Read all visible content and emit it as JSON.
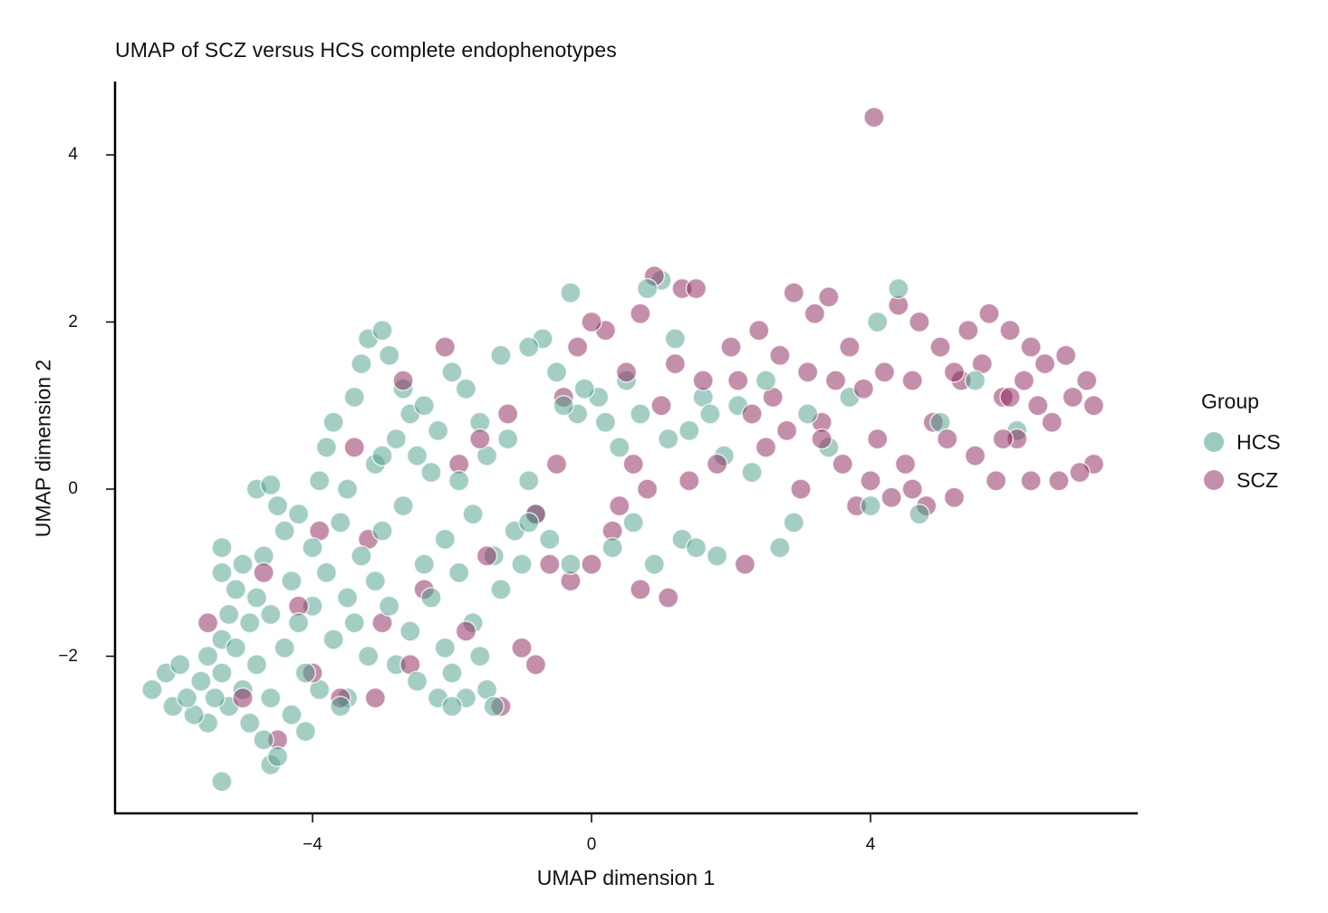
{
  "chart_data": {
    "type": "scatter",
    "title": "UMAP of SCZ versus HCS complete endophenotypes",
    "xlabel": "UMAP dimension 1",
    "ylabel": "UMAP dimension 2",
    "xlim": [
      -6.77,
      7.88
    ],
    "ylim": [
      -3.88,
      4.88
    ],
    "xticks": [
      -4,
      0,
      4
    ],
    "yticks": [
      -2,
      0,
      2,
      4
    ],
    "grid": false,
    "legend": {
      "title": "Group",
      "position": "right",
      "entries": [
        "HCS",
        "SCZ"
      ]
    },
    "series": [
      {
        "name": "HCS",
        "color": "#4a9e8a",
        "alpha": 0.5,
        "points": [
          [
            -6.3,
            -2.4
          ],
          [
            -6.1,
            -2.2
          ],
          [
            -6.0,
            -2.6
          ],
          [
            -5.9,
            -2.1
          ],
          [
            -5.8,
            -2.5
          ],
          [
            -5.7,
            -2.7
          ],
          [
            -5.6,
            -2.3
          ],
          [
            -5.5,
            -2.0
          ],
          [
            -5.5,
            -2.8
          ],
          [
            -5.4,
            -2.5
          ],
          [
            -5.3,
            -1.8
          ],
          [
            -5.3,
            -2.2
          ],
          [
            -5.2,
            -1.5
          ],
          [
            -5.2,
            -2.6
          ],
          [
            -5.1,
            -1.2
          ],
          [
            -5.1,
            -1.9
          ],
          [
            -5.0,
            -2.4
          ],
          [
            -5.0,
            -0.9
          ],
          [
            -5.3,
            -0.7
          ],
          [
            -5.3,
            -1.0
          ],
          [
            -4.9,
            -1.6
          ],
          [
            -4.9,
            -2.8
          ],
          [
            -4.8,
            -2.1
          ],
          [
            -4.8,
            -1.3
          ],
          [
            -4.7,
            -0.8
          ],
          [
            -4.7,
            -3.0
          ],
          [
            -4.6,
            -1.5
          ],
          [
            -4.6,
            -2.5
          ],
          [
            -4.5,
            -3.2
          ],
          [
            -4.5,
            -0.2
          ],
          [
            -4.8,
            0.0
          ],
          [
            -4.4,
            -0.5
          ],
          [
            -4.4,
            -1.9
          ],
          [
            -4.3,
            -2.7
          ],
          [
            -4.3,
            -1.1
          ],
          [
            -4.2,
            -0.3
          ],
          [
            -4.2,
            -1.6
          ],
          [
            -4.1,
            -2.2
          ],
          [
            -4.0,
            -0.7
          ],
          [
            -4.0,
            -1.4
          ],
          [
            -3.9,
            0.1
          ],
          [
            -3.9,
            -2.4
          ],
          [
            -3.8,
            0.5
          ],
          [
            -3.8,
            -1.0
          ],
          [
            -3.7,
            -1.8
          ],
          [
            -3.7,
            0.8
          ],
          [
            -3.6,
            -0.4
          ],
          [
            -3.6,
            -2.6
          ],
          [
            -3.5,
            -1.3
          ],
          [
            -3.5,
            0.0
          ],
          [
            -3.4,
            1.1
          ],
          [
            -3.4,
            -1.6
          ],
          [
            -3.3,
            1.5
          ],
          [
            -3.3,
            -0.8
          ],
          [
            -3.2,
            1.8
          ],
          [
            -3.2,
            -2.0
          ],
          [
            -3.1,
            0.3
          ],
          [
            -3.1,
            -1.1
          ],
          [
            -3.0,
            1.9
          ],
          [
            -3.0,
            -0.5
          ],
          [
            -2.9,
            1.6
          ],
          [
            -2.9,
            -1.4
          ],
          [
            -2.8,
            0.6
          ],
          [
            -2.8,
            -2.1
          ],
          [
            -2.7,
            1.2
          ],
          [
            -2.7,
            -0.2
          ],
          [
            -2.6,
            0.9
          ],
          [
            -2.6,
            -1.7
          ],
          [
            -2.5,
            0.4
          ],
          [
            -2.5,
            -2.3
          ],
          [
            -2.4,
            1.0
          ],
          [
            -2.4,
            -0.9
          ],
          [
            -2.3,
            0.2
          ],
          [
            -2.3,
            -1.3
          ],
          [
            -2.2,
            -2.5
          ],
          [
            -2.2,
            0.7
          ],
          [
            -2.1,
            -0.6
          ],
          [
            -2.1,
            -1.9
          ],
          [
            -2.0,
            1.4
          ],
          [
            -2.0,
            -2.2
          ],
          [
            -1.9,
            0.1
          ],
          [
            -1.9,
            -1.0
          ],
          [
            -1.8,
            -2.5
          ],
          [
            -1.8,
            1.2
          ],
          [
            -1.7,
            -0.3
          ],
          [
            -1.7,
            -1.6
          ],
          [
            -1.6,
            0.8
          ],
          [
            -1.6,
            -2.0
          ],
          [
            -1.5,
            -2.4
          ],
          [
            -1.5,
            0.4
          ],
          [
            -1.4,
            -0.8
          ],
          [
            -1.3,
            1.6
          ],
          [
            -1.3,
            -1.2
          ],
          [
            -1.2,
            0.6
          ],
          [
            -1.1,
            -0.5
          ],
          [
            -1.0,
            -0.9
          ],
          [
            -0.9,
            1.7
          ],
          [
            -0.9,
            0.1
          ],
          [
            -0.8,
            -0.3
          ],
          [
            -0.7,
            1.8
          ],
          [
            -0.6,
            -0.6
          ],
          [
            -0.5,
            1.4
          ],
          [
            -0.4,
            1.0
          ],
          [
            -0.3,
            2.35
          ],
          [
            -0.2,
            0.9
          ],
          [
            -0.1,
            1.2
          ],
          [
            0.1,
            1.1
          ],
          [
            0.2,
            0.8
          ],
          [
            0.3,
            -0.7
          ],
          [
            0.4,
            0.5
          ],
          [
            0.5,
            1.3
          ],
          [
            0.6,
            -0.4
          ],
          [
            0.7,
            0.9
          ],
          [
            0.8,
            2.4
          ],
          [
            0.9,
            -0.9
          ],
          [
            1.0,
            2.5
          ],
          [
            1.1,
            0.6
          ],
          [
            1.2,
            1.8
          ],
          [
            1.3,
            -0.6
          ],
          [
            1.4,
            0.7
          ],
          [
            1.5,
            -0.7
          ],
          [
            1.6,
            1.1
          ],
          [
            1.7,
            0.9
          ],
          [
            1.8,
            -0.8
          ],
          [
            1.9,
            0.4
          ],
          [
            2.1,
            1.0
          ],
          [
            2.3,
            0.2
          ],
          [
            2.5,
            1.3
          ],
          [
            2.7,
            -0.7
          ],
          [
            2.9,
            -0.4
          ],
          [
            3.1,
            0.9
          ],
          [
            3.4,
            0.5
          ],
          [
            3.7,
            1.1
          ],
          [
            4.0,
            -0.2
          ],
          [
            4.1,
            2.0
          ],
          [
            4.4,
            2.4
          ],
          [
            4.7,
            -0.3
          ],
          [
            5.0,
            0.8
          ],
          [
            5.5,
            1.3
          ],
          [
            6.1,
            0.7
          ],
          [
            -5.3,
            -3.5
          ],
          [
            -4.6,
            -3.3
          ],
          [
            -4.1,
            -2.9
          ],
          [
            -3.5,
            -2.5
          ],
          [
            -2.0,
            -2.6
          ],
          [
            -1.4,
            -2.6
          ],
          [
            -0.9,
            -0.4
          ],
          [
            -0.3,
            -0.9
          ],
          [
            -4.6,
            0.05
          ],
          [
            -3.0,
            0.4
          ]
        ]
      },
      {
        "name": "SCZ",
        "color": "#8a1f55",
        "alpha": 0.5,
        "points": [
          [
            -5.5,
            -1.6
          ],
          [
            -5.0,
            -2.5
          ],
          [
            -4.7,
            -1.0
          ],
          [
            -4.5,
            -3.0
          ],
          [
            -4.2,
            -1.4
          ],
          [
            -4.0,
            -2.2
          ],
          [
            -3.9,
            -0.5
          ],
          [
            -3.6,
            -2.5
          ],
          [
            -3.4,
            0.5
          ],
          [
            -3.2,
            -0.6
          ],
          [
            -3.1,
            -2.5
          ],
          [
            -3.0,
            -1.6
          ],
          [
            -2.7,
            1.3
          ],
          [
            -2.6,
            -2.1
          ],
          [
            -2.4,
            -1.2
          ],
          [
            -2.1,
            1.7
          ],
          [
            -1.9,
            0.3
          ],
          [
            -1.8,
            -1.7
          ],
          [
            -1.6,
            0.6
          ],
          [
            -1.5,
            -0.8
          ],
          [
            -1.3,
            -2.6
          ],
          [
            -1.2,
            0.9
          ],
          [
            -1.0,
            -1.9
          ],
          [
            -0.8,
            -2.1
          ],
          [
            -0.8,
            -0.3
          ],
          [
            -0.6,
            -0.9
          ],
          [
            -0.4,
            1.1
          ],
          [
            -0.3,
            -1.1
          ],
          [
            -0.2,
            1.7
          ],
          [
            0.0,
            2.0
          ],
          [
            0.0,
            -0.9
          ],
          [
            0.2,
            1.9
          ],
          [
            0.4,
            -0.2
          ],
          [
            0.5,
            1.4
          ],
          [
            0.6,
            0.3
          ],
          [
            0.7,
            2.1
          ],
          [
            0.7,
            -1.2
          ],
          [
            0.8,
            0.0
          ],
          [
            0.9,
            2.55
          ],
          [
            1.0,
            1.0
          ],
          [
            1.1,
            -1.3
          ],
          [
            1.2,
            1.5
          ],
          [
            1.3,
            2.4
          ],
          [
            1.4,
            0.1
          ],
          [
            1.6,
            1.3
          ],
          [
            1.8,
            0.3
          ],
          [
            2.0,
            1.7
          ],
          [
            2.2,
            -0.9
          ],
          [
            2.3,
            0.9
          ],
          [
            2.4,
            1.9
          ],
          [
            2.5,
            0.5
          ],
          [
            2.6,
            1.1
          ],
          [
            2.7,
            1.6
          ],
          [
            2.8,
            0.7
          ],
          [
            2.9,
            2.35
          ],
          [
            3.0,
            0.0
          ],
          [
            3.1,
            1.4
          ],
          [
            3.2,
            2.1
          ],
          [
            3.3,
            0.8
          ],
          [
            3.4,
            2.3
          ],
          [
            3.5,
            1.3
          ],
          [
            3.6,
            0.3
          ],
          [
            3.7,
            1.7
          ],
          [
            3.8,
            -0.2
          ],
          [
            3.9,
            1.2
          ],
          [
            4.0,
            0.1
          ],
          [
            4.05,
            4.45
          ],
          [
            4.1,
            0.6
          ],
          [
            4.2,
            1.4
          ],
          [
            4.3,
            -0.1
          ],
          [
            4.4,
            2.2
          ],
          [
            4.5,
            0.3
          ],
          [
            4.6,
            1.3
          ],
          [
            4.7,
            2.0
          ],
          [
            4.8,
            -0.2
          ],
          [
            4.9,
            0.8
          ],
          [
            5.0,
            1.7
          ],
          [
            5.1,
            0.6
          ],
          [
            5.2,
            -0.1
          ],
          [
            5.3,
            1.3
          ],
          [
            5.4,
            1.9
          ],
          [
            5.5,
            0.4
          ],
          [
            5.6,
            1.5
          ],
          [
            5.7,
            2.1
          ],
          [
            5.8,
            0.1
          ],
          [
            5.9,
            1.1
          ],
          [
            6.0,
            1.9
          ],
          [
            6.1,
            0.6
          ],
          [
            6.2,
            1.3
          ],
          [
            6.3,
            0.1
          ],
          [
            6.4,
            1.0
          ],
          [
            6.5,
            1.5
          ],
          [
            6.6,
            0.8
          ],
          [
            6.7,
            0.1
          ],
          [
            6.8,
            1.6
          ],
          [
            6.9,
            1.1
          ],
          [
            7.0,
            0.2
          ],
          [
            7.1,
            1.3
          ],
          [
            7.2,
            1.0
          ],
          [
            7.2,
            0.3
          ],
          [
            6.0,
            1.1
          ],
          [
            5.2,
            1.4
          ],
          [
            4.6,
            0.0
          ],
          [
            3.3,
            0.6
          ],
          [
            2.1,
            1.3
          ],
          [
            0.3,
            -0.5
          ],
          [
            -0.5,
            0.3
          ],
          [
            1.5,
            2.4
          ],
          [
            6.3,
            1.7
          ],
          [
            5.9,
            0.6
          ]
        ]
      }
    ]
  }
}
